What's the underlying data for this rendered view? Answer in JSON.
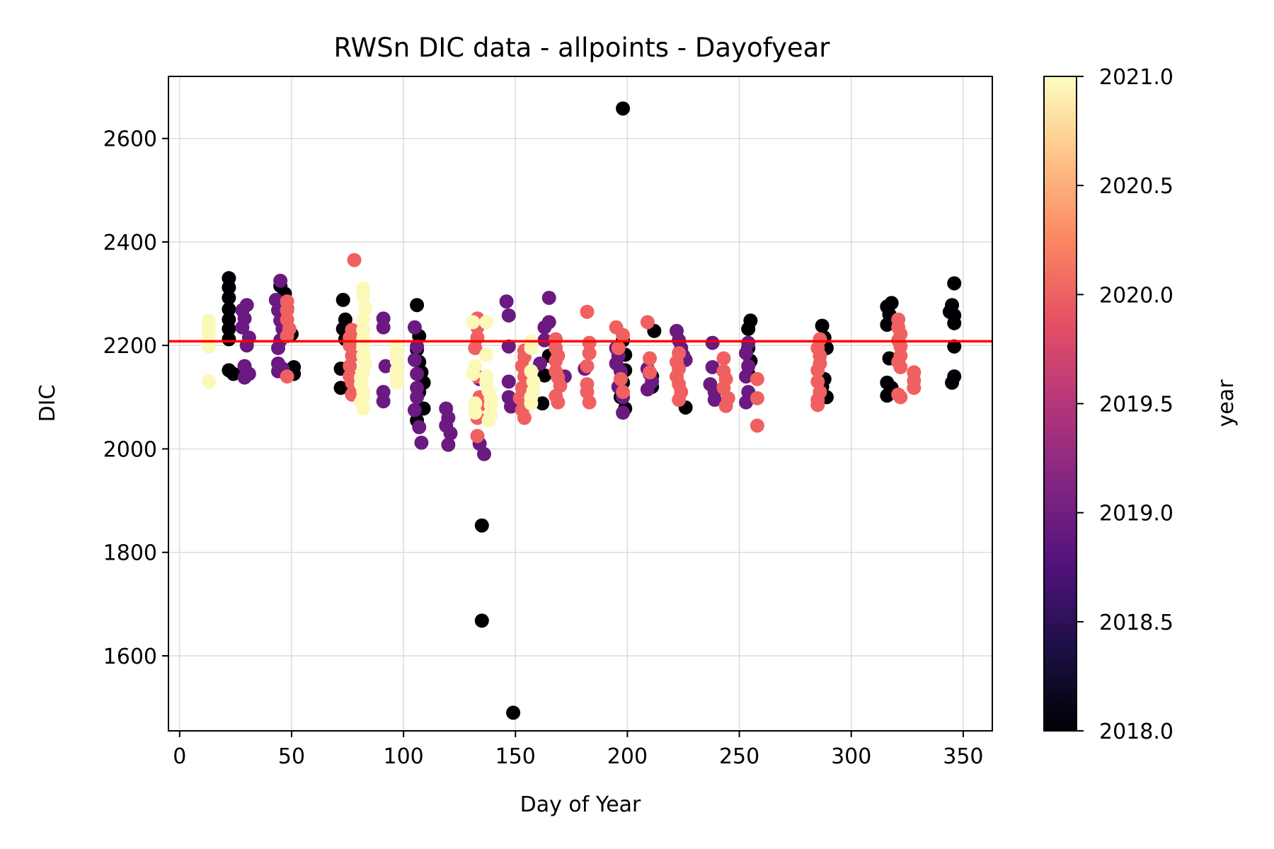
{
  "chart_data": {
    "type": "scatter",
    "title": "RWSn DIC data - allpoints - Dayofyear",
    "xlabel": "Day of Year",
    "ylabel": "DIC",
    "xlim": [
      -5,
      363
    ],
    "ylim": [
      1455,
      2720
    ],
    "xticks": [
      0,
      50,
      100,
      150,
      200,
      250,
      300,
      350
    ],
    "yticks": [
      1600,
      1800,
      2000,
      2200,
      2400,
      2600
    ],
    "grid": true,
    "colormap": "magma",
    "colorbar": {
      "label": "year",
      "min": 2018.0,
      "max": 2021.0,
      "ticks": [
        "2018.0",
        "2018.5",
        "2019.0",
        "2019.5",
        "2020.0",
        "2020.5",
        "2021.0"
      ],
      "colors": [
        "#000004",
        "#1c1044",
        "#4f127b",
        "#812581",
        "#b5367a",
        "#e55064",
        "#fb8761",
        "#fec287",
        "#fcfdbf"
      ]
    },
    "reference_line": {
      "y": 2208,
      "color": "#ff0000"
    },
    "series_colors": {
      "2018": "#000004",
      "2019": "#6a1a80",
      "2020": "#f06060",
      "2021": "#fcf8b8"
    },
    "series": [
      {
        "year": 2018,
        "points": [
          [
            22,
            2330
          ],
          [
            22,
            2312
          ],
          [
            22,
            2292
          ],
          [
            22,
            2270
          ],
          [
            22,
            2250
          ],
          [
            22,
            2232
          ],
          [
            22,
            2212
          ],
          [
            22,
            2152
          ],
          [
            24,
            2145
          ],
          [
            45,
            2315
          ],
          [
            47,
            2300
          ],
          [
            48,
            2270
          ],
          [
            50,
            2222
          ],
          [
            51,
            2158
          ],
          [
            51,
            2145
          ],
          [
            73,
            2288
          ],
          [
            74,
            2250
          ],
          [
            73,
            2232
          ],
          [
            74,
            2212
          ],
          [
            72,
            2155
          ],
          [
            72,
            2118
          ],
          [
            106,
            2278
          ],
          [
            107,
            2218
          ],
          [
            106,
            2192
          ],
          [
            107,
            2168
          ],
          [
            108,
            2148
          ],
          [
            109,
            2128
          ],
          [
            107,
            2110
          ],
          [
            109,
            2078
          ],
          [
            106,
            2055
          ],
          [
            135,
            1852
          ],
          [
            135,
            1668
          ],
          [
            149,
            1490
          ],
          [
            162,
            2088
          ],
          [
            163,
            2142
          ],
          [
            165,
            2180
          ],
          [
            198,
            2658
          ],
          [
            198,
            2210
          ],
          [
            199,
            2182
          ],
          [
            199,
            2152
          ],
          [
            198,
            2128
          ],
          [
            197,
            2100
          ],
          [
            199,
            2078
          ],
          [
            212,
            2228
          ],
          [
            211,
            2140
          ],
          [
            211,
            2120
          ],
          [
            226,
            2080
          ],
          [
            254,
            2232
          ],
          [
            255,
            2248
          ],
          [
            254,
            2195
          ],
          [
            255,
            2170
          ],
          [
            254,
            2145
          ],
          [
            287,
            2238
          ],
          [
            288,
            2215
          ],
          [
            289,
            2195
          ],
          [
            288,
            2135
          ],
          [
            287,
            2120
          ],
          [
            289,
            2100
          ],
          [
            316,
            2275
          ],
          [
            317,
            2260
          ],
          [
            316,
            2240
          ],
          [
            318,
            2282
          ],
          [
            317,
            2175
          ],
          [
            316,
            2128
          ],
          [
            318,
            2118
          ],
          [
            316,
            2103
          ],
          [
            345,
            2278
          ],
          [
            346,
            2258
          ],
          [
            346,
            2243
          ],
          [
            346,
            2320
          ],
          [
            346,
            2198
          ],
          [
            346,
            2140
          ],
          [
            345,
            2128
          ],
          [
            344,
            2265
          ]
        ]
      },
      {
        "year": 2019,
        "points": [
          [
            28,
            2268
          ],
          [
            29,
            2252
          ],
          [
            28,
            2235
          ],
          [
            30,
            2278
          ],
          [
            31,
            2215
          ],
          [
            30,
            2200
          ],
          [
            29,
            2160
          ],
          [
            31,
            2145
          ],
          [
            29,
            2138
          ],
          [
            43,
            2288
          ],
          [
            45,
            2325
          ],
          [
            44,
            2268
          ],
          [
            45,
            2248
          ],
          [
            46,
            2232
          ],
          [
            45,
            2210
          ],
          [
            44,
            2195
          ],
          [
            44,
            2165
          ],
          [
            44,
            2150
          ],
          [
            46,
            2155
          ],
          [
            91,
            2252
          ],
          [
            91,
            2235
          ],
          [
            92,
            2160
          ],
          [
            91,
            2110
          ],
          [
            91,
            2092
          ],
          [
            105,
            2235
          ],
          [
            106,
            2198
          ],
          [
            105,
            2172
          ],
          [
            106,
            2145
          ],
          [
            106,
            2118
          ],
          [
            106,
            2100
          ],
          [
            105,
            2075
          ],
          [
            107,
            2042
          ],
          [
            108,
            2012
          ],
          [
            119,
            2078
          ],
          [
            120,
            2060
          ],
          [
            119,
            2045
          ],
          [
            121,
            2030
          ],
          [
            120,
            2008
          ],
          [
            134,
            2010
          ],
          [
            136,
            1990
          ],
          [
            134,
            2135
          ],
          [
            146,
            2285
          ],
          [
            147,
            2258
          ],
          [
            147,
            2198
          ],
          [
            147,
            2130
          ],
          [
            147,
            2100
          ],
          [
            148,
            2082
          ],
          [
            161,
            2165
          ],
          [
            163,
            2210
          ],
          [
            163,
            2235
          ],
          [
            165,
            2292
          ],
          [
            165,
            2245
          ],
          [
            172,
            2140
          ],
          [
            181,
            2155
          ],
          [
            195,
            2195
          ],
          [
            196,
            2180
          ],
          [
            195,
            2165
          ],
          [
            197,
            2150
          ],
          [
            196,
            2120
          ],
          [
            198,
            2100
          ],
          [
            198,
            2070
          ],
          [
            209,
            2155
          ],
          [
            210,
            2145
          ],
          [
            211,
            2130
          ],
          [
            209,
            2115
          ],
          [
            222,
            2228
          ],
          [
            223,
            2210
          ],
          [
            224,
            2195
          ],
          [
            225,
            2180
          ],
          [
            226,
            2172
          ],
          [
            238,
            2205
          ],
          [
            238,
            2158
          ],
          [
            237,
            2125
          ],
          [
            239,
            2110
          ],
          [
            239,
            2095
          ],
          [
            254,
            2205
          ],
          [
            253,
            2185
          ],
          [
            254,
            2160
          ],
          [
            253,
            2140
          ],
          [
            254,
            2110
          ],
          [
            253,
            2090
          ]
        ]
      },
      {
        "year": 2020,
        "points": [
          [
            48,
            2285
          ],
          [
            48,
            2268
          ],
          [
            48,
            2250
          ],
          [
            49,
            2232
          ],
          [
            48,
            2218
          ],
          [
            48,
            2140
          ],
          [
            78,
            2365
          ],
          [
            77,
            2230
          ],
          [
            76,
            2215
          ],
          [
            76,
            2200
          ],
          [
            77,
            2180
          ],
          [
            76,
            2160
          ],
          [
            76,
            2140
          ],
          [
            77,
            2128
          ],
          [
            78,
            2112
          ],
          [
            77,
            2105
          ],
          [
            133,
            2252
          ],
          [
            133,
            2235
          ],
          [
            133,
            2215
          ],
          [
            132,
            2195
          ],
          [
            133,
            2140
          ],
          [
            134,
            2100
          ],
          [
            134,
            2085
          ],
          [
            133,
            2060
          ],
          [
            133,
            2025
          ],
          [
            154,
            2190
          ],
          [
            154,
            2178
          ],
          [
            153,
            2160
          ],
          [
            154,
            2140
          ],
          [
            153,
            2118
          ],
          [
            152,
            2098
          ],
          [
            153,
            2075
          ],
          [
            154,
            2060
          ],
          [
            168,
            2212
          ],
          [
            168,
            2195
          ],
          [
            169,
            2180
          ],
          [
            168,
            2170
          ],
          [
            168,
            2150
          ],
          [
            169,
            2138
          ],
          [
            170,
            2122
          ],
          [
            168,
            2102
          ],
          [
            169,
            2090
          ],
          [
            182,
            2265
          ],
          [
            183,
            2205
          ],
          [
            183,
            2185
          ],
          [
            182,
            2160
          ],
          [
            182,
            2125
          ],
          [
            182,
            2110
          ],
          [
            183,
            2090
          ],
          [
            195,
            2235
          ],
          [
            196,
            2195
          ],
          [
            198,
            2220
          ],
          [
            197,
            2135
          ],
          [
            198,
            2110
          ],
          [
            209,
            2245
          ],
          [
            210,
            2175
          ],
          [
            210,
            2148
          ],
          [
            223,
            2185
          ],
          [
            222,
            2168
          ],
          [
            223,
            2155
          ],
          [
            222,
            2140
          ],
          [
            223,
            2125
          ],
          [
            224,
            2110
          ],
          [
            223,
            2095
          ],
          [
            243,
            2175
          ],
          [
            243,
            2150
          ],
          [
            244,
            2135
          ],
          [
            243,
            2118
          ],
          [
            245,
            2098
          ],
          [
            244,
            2083
          ],
          [
            258,
            2135
          ],
          [
            258,
            2098
          ],
          [
            258,
            2045
          ],
          [
            286,
            2212
          ],
          [
            285,
            2195
          ],
          [
            286,
            2180
          ],
          [
            286,
            2165
          ],
          [
            285,
            2152
          ],
          [
            285,
            2130
          ],
          [
            286,
            2110
          ],
          [
            285,
            2095
          ],
          [
            285,
            2085
          ],
          [
            321,
            2250
          ],
          [
            321,
            2235
          ],
          [
            322,
            2222
          ],
          [
            321,
            2210
          ],
          [
            322,
            2198
          ],
          [
            322,
            2180
          ],
          [
            321,
            2168
          ],
          [
            322,
            2158
          ],
          [
            321,
            2105
          ],
          [
            322,
            2100
          ],
          [
            328,
            2148
          ],
          [
            328,
            2132
          ],
          [
            328,
            2118
          ]
        ]
      },
      {
        "year": 2021,
        "points": [
          [
            13,
            2248
          ],
          [
            13,
            2238
          ],
          [
            13,
            2225
          ],
          [
            13,
            2210
          ],
          [
            13,
            2198
          ],
          [
            13,
            2130
          ],
          [
            82,
            2310
          ],
          [
            82,
            2295
          ],
          [
            83,
            2272
          ],
          [
            82,
            2250
          ],
          [
            82,
            2230
          ],
          [
            82,
            2212
          ],
          [
            82,
            2198
          ],
          [
            82,
            2180
          ],
          [
            83,
            2165
          ],
          [
            82,
            2150
          ],
          [
            81,
            2138
          ],
          [
            81,
            2125
          ],
          [
            82,
            2112
          ],
          [
            82,
            2100
          ],
          [
            81,
            2090
          ],
          [
            82,
            2078
          ],
          [
            97,
            2200
          ],
          [
            97,
            2185
          ],
          [
            97,
            2170
          ],
          [
            97,
            2152
          ],
          [
            97,
            2140
          ],
          [
            97,
            2128
          ],
          [
            131,
            2245
          ],
          [
            132,
            2160
          ],
          [
            131,
            2145
          ],
          [
            132,
            2088
          ],
          [
            132,
            2070
          ],
          [
            137,
            2245
          ],
          [
            137,
            2182
          ],
          [
            137,
            2140
          ],
          [
            137,
            2128
          ],
          [
            138,
            2112
          ],
          [
            139,
            2098
          ],
          [
            139,
            2085
          ],
          [
            139,
            2065
          ],
          [
            138,
            2055
          ],
          [
            157,
            2208
          ],
          [
            157,
            2195
          ],
          [
            157,
            2150
          ],
          [
            158,
            2130
          ],
          [
            158,
            2112
          ],
          [
            157,
            2100
          ],
          [
            157,
            2088
          ]
        ]
      }
    ]
  }
}
